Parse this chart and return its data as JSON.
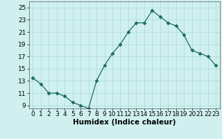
{
  "xlabel": "Humidex (Indice chaleur)",
  "x": [
    0,
    1,
    2,
    3,
    4,
    5,
    6,
    7,
    8,
    9,
    10,
    11,
    12,
    13,
    14,
    15,
    16,
    17,
    18,
    19,
    20,
    21,
    22,
    23
  ],
  "y": [
    13.5,
    12.5,
    11.0,
    11.0,
    10.5,
    9.5,
    9.0,
    8.5,
    13.0,
    15.5,
    17.5,
    19.0,
    21.0,
    22.5,
    22.5,
    24.5,
    23.5,
    22.5,
    22.0,
    20.5,
    18.0,
    17.5,
    17.0,
    15.5
  ],
  "ylim": [
    8.5,
    26.0
  ],
  "xlim": [
    -0.5,
    23.5
  ],
  "yticks": [
    9,
    11,
    13,
    15,
    17,
    19,
    21,
    23,
    25
  ],
  "xticks": [
    0,
    1,
    2,
    3,
    4,
    5,
    6,
    7,
    8,
    9,
    10,
    11,
    12,
    13,
    14,
    15,
    16,
    17,
    18,
    19,
    20,
    21,
    22,
    23
  ],
  "line_color": "#1a6b5e",
  "marker": "D",
  "marker_size": 2.5,
  "bg_color": "#d0f0f0",
  "grid_color": "#aad8d8",
  "tick_fontsize": 6.5,
  "xlabel_fontsize": 7.5
}
